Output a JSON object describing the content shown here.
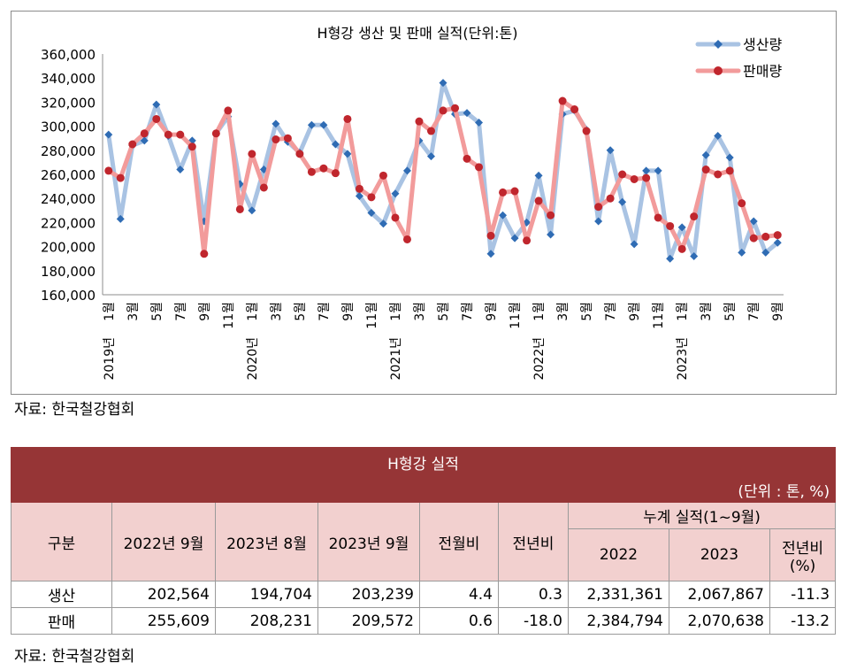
{
  "chart_data": {
    "type": "line",
    "title": "H형강 생산 및 판매 실적(단위:톤)",
    "ylim": [
      160000,
      360000
    ],
    "yticks": [
      "360,000",
      "340,000",
      "320,000",
      "300,000",
      "280,000",
      "260,000",
      "240,000",
      "220,000",
      "200,000",
      "180,000",
      "160,000"
    ],
    "month_labels": [
      "1월",
      "3월",
      "5월",
      "7월",
      "9월",
      "11월"
    ],
    "year_labels": [
      "2019년",
      "2020년",
      "2021년",
      "2022년",
      "2023년"
    ],
    "legend_position": "top-right",
    "series": [
      {
        "name": "생산량",
        "color": "#a9c3e3",
        "marker_color": "#2f6cb4",
        "marker": "diamond",
        "values": [
          293000,
          223000,
          284000,
          288000,
          318000,
          292000,
          264000,
          288000,
          221000,
          294000,
          308000,
          252000,
          230000,
          264000,
          302000,
          287000,
          278000,
          301000,
          301000,
          285000,
          277000,
          242000,
          228000,
          219000,
          244000,
          263000,
          288000,
          275000,
          336000,
          310000,
          311000,
          303000,
          194000,
          226000,
          207000,
          220000,
          259000,
          210000,
          310000,
          313000,
          297000,
          221000,
          280000,
          237000,
          202000,
          263000,
          263000,
          190000,
          216000,
          192000,
          276000,
          292000,
          274000,
          195000,
          221000,
          195000,
          203239
        ]
      },
      {
        "name": "판매량",
        "color": "#f29b9b",
        "marker_color": "#c0262d",
        "marker": "circle",
        "values": [
          263000,
          257000,
          285000,
          294000,
          306000,
          293000,
          293000,
          283000,
          194000,
          294000,
          313000,
          231000,
          277000,
          249000,
          289000,
          290000,
          277000,
          262000,
          265000,
          261000,
          306000,
          248000,
          241000,
          259000,
          224000,
          206000,
          304000,
          296000,
          313000,
          315000,
          273000,
          266000,
          209000,
          245000,
          246000,
          205000,
          238000,
          226000,
          321000,
          314000,
          296000,
          233000,
          240000,
          260000,
          256000,
          257000,
          224000,
          217000,
          198000,
          225000,
          264000,
          260000,
          263000,
          236000,
          207000,
          208231,
          209572
        ]
      }
    ]
  },
  "source_top": "자료: 한국철강협회",
  "table": {
    "title": "H형강 실적",
    "unit": "(단위 : 톤, %)",
    "headers": {
      "category": "구분",
      "c1": "2022년 9월",
      "c2": "2023년 8월",
      "c3": "2023년 9월",
      "mom": "전월비",
      "yoy": "전년비",
      "cum": "누계 실적(1~9월)",
      "cum2022": "2022",
      "cum2023": "2023",
      "cumyoy_a": "전년비",
      "cumyoy_b": "(%)"
    },
    "rows": [
      {
        "label": "생산",
        "c1": "202,564",
        "c2": "194,704",
        "c3": "203,239",
        "mom": "4.4",
        "yoy": "0.3",
        "cum2022": "2,331,361",
        "cum2023": "2,067,867",
        "cumyoy": "-11.3"
      },
      {
        "label": "판매",
        "c1": "255,609",
        "c2": "208,231",
        "c3": "209,572",
        "mom": "0.6",
        "yoy": "-18.0",
        "cum2022": "2,384,794",
        "cum2023": "2,070,638",
        "cumyoy": "-13.2"
      }
    ]
  },
  "source_bottom": "자료: 한국철강협회"
}
